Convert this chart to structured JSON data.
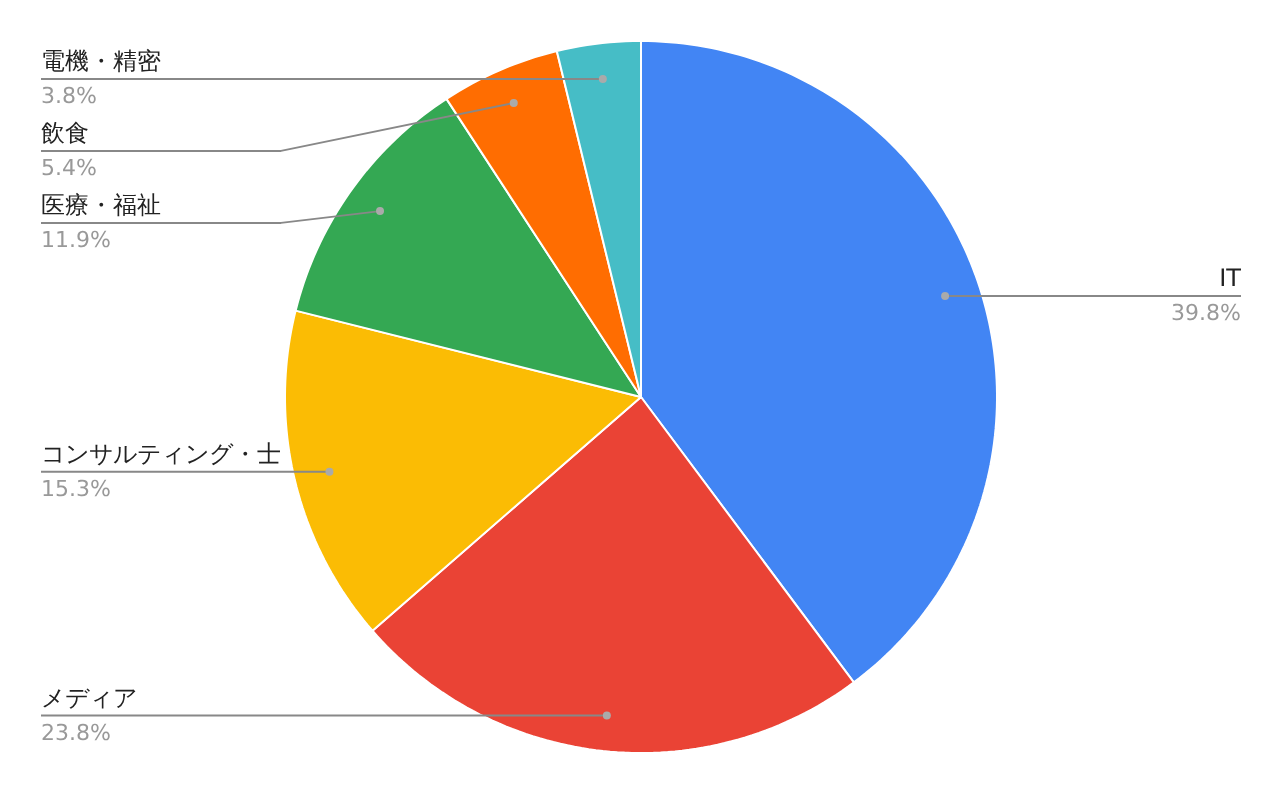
{
  "chart_data": {
    "type": "pie",
    "categories": [
      "IT",
      "メディア",
      "コンサルティング・士",
      "医療・福祉",
      "飲食",
      "電機・精密"
    ],
    "values": [
      39.8,
      23.8,
      15.3,
      11.9,
      5.4,
      3.8
    ],
    "colors": [
      "#4285f4",
      "#ea4335",
      "#fbbc04",
      "#34a853",
      "#ff6d01",
      "#46bdc6"
    ],
    "value_labels": [
      "39.8%",
      "23.8%",
      "15.3%",
      "11.9%",
      "5.4%",
      "3.8%"
    ]
  }
}
